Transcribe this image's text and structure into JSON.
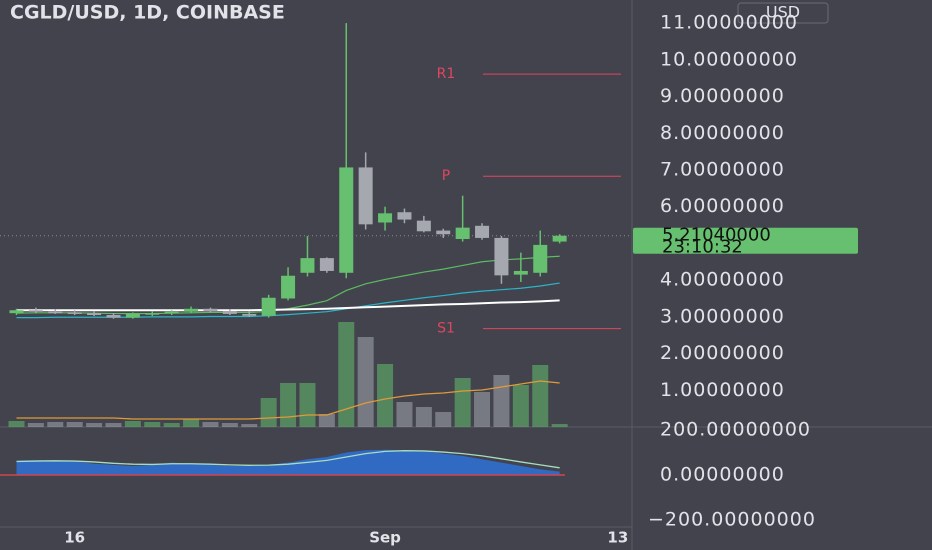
{
  "chart_data": [
    {
      "type": "candlestick",
      "title": "CGLD/USD, 1D, COINBASE",
      "currency": "USD",
      "x": [
        0,
        1,
        2,
        3,
        4,
        5,
        6,
        7,
        8,
        9,
        10,
        11,
        12,
        13,
        14,
        15,
        16,
        17,
        18,
        19,
        20,
        21,
        22,
        23,
        24,
        25,
        26,
        27,
        28
      ],
      "open": [
        3.1,
        3.18,
        3.14,
        3.12,
        3.1,
        3.05,
        2.98,
        3.08,
        3.1,
        3.14,
        3.22,
        3.15,
        3.08,
        3.03,
        3.5,
        4.2,
        4.6,
        4.2,
        7.07,
        5.57,
        5.85,
        5.62,
        5.35,
        5.12,
        5.48,
        5.15,
        4.15,
        4.2,
        5.05
      ],
      "high": [
        3.22,
        3.25,
        3.2,
        3.18,
        3.15,
        3.1,
        3.12,
        3.15,
        3.18,
        3.28,
        3.25,
        3.2,
        3.15,
        3.6,
        4.35,
        5.2,
        4.62,
        11.0,
        7.48,
        6.0,
        5.95,
        5.75,
        5.4,
        6.3,
        5.55,
        5.2,
        4.75,
        5.35,
        5.25
      ],
      "low": [
        3.05,
        3.1,
        3.08,
        3.05,
        3.02,
        2.95,
        2.95,
        3.02,
        3.05,
        3.1,
        3.12,
        3.05,
        3.0,
        2.98,
        3.45,
        4.1,
        4.2,
        4.05,
        5.38,
        5.35,
        5.55,
        5.3,
        5.15,
        5.05,
        5.1,
        3.9,
        3.95,
        4.1,
        5.0
      ],
      "close": [
        3.18,
        3.14,
        3.12,
        3.1,
        3.05,
        2.98,
        3.08,
        3.1,
        3.14,
        3.22,
        3.15,
        3.08,
        3.03,
        3.52,
        4.12,
        4.6,
        4.25,
        7.07,
        5.52,
        5.82,
        5.65,
        5.33,
        5.25,
        5.43,
        5.15,
        4.13,
        4.25,
        4.96,
        5.21
      ],
      "volume": [
        6,
        4,
        5,
        5,
        4,
        4,
        6,
        5,
        4,
        8,
        5,
        4,
        3,
        29,
        44,
        44,
        13,
        105,
        90,
        63,
        25,
        20,
        15,
        49,
        35,
        52,
        42,
        62,
        3
      ],
      "volume_ma": {
        "color": "#e09a3a",
        "values": [
          9,
          9,
          9,
          9,
          9,
          9,
          8,
          8,
          8,
          8,
          8,
          8,
          8,
          9,
          10,
          12,
          12,
          18,
          24,
          28,
          31,
          33,
          34,
          36,
          37,
          40,
          43,
          46,
          44
        ]
      },
      "volume_lim": [
        0,
        427
      ],
      "up_color": "#66c06f",
      "down_color": "#a6a8b0",
      "lines": [
        {
          "color": "#5dbb63",
          "values": [
            3.1,
            3.11,
            3.11,
            3.11,
            3.1,
            3.09,
            3.09,
            3.09,
            3.1,
            3.11,
            3.12,
            3.12,
            3.12,
            3.15,
            3.22,
            3.32,
            3.44,
            3.72,
            3.9,
            4.02,
            4.12,
            4.22,
            4.3,
            4.4,
            4.5,
            4.55,
            4.58,
            4.62,
            4.65
          ]
        },
        {
          "color": "#2bb5c8",
          "values": [
            2.98,
            2.98,
            2.99,
            2.99,
            2.99,
            2.99,
            2.99,
            3.0,
            3.0,
            3.0,
            3.01,
            3.01,
            3.01,
            3.03,
            3.06,
            3.1,
            3.14,
            3.22,
            3.3,
            3.38,
            3.45,
            3.52,
            3.58,
            3.65,
            3.7,
            3.74,
            3.78,
            3.84,
            3.92
          ]
        },
        {
          "color": "#ffffff",
          "values": [
            3.18,
            3.18,
            3.18,
            3.18,
            3.18,
            3.18,
            3.18,
            3.18,
            3.18,
            3.18,
            3.18,
            3.18,
            3.18,
            3.19,
            3.2,
            3.21,
            3.22,
            3.24,
            3.26,
            3.28,
            3.3,
            3.32,
            3.34,
            3.35,
            3.37,
            3.39,
            3.4,
            3.42,
            3.45
          ]
        }
      ],
      "pivots": [
        {
          "name": "R1",
          "value": 9.61
        },
        {
          "name": "P",
          "value": 6.83
        },
        {
          "name": "S1",
          "value": 2.68
        }
      ],
      "pivot_color": "#e0465e",
      "last_price": {
        "value": 5.2104,
        "label": "5.21040000"
      },
      "countdown": "23:10:32",
      "xlim": [
        -0.85,
        31.73
      ],
      "ylim": [
        0,
        11.63
      ],
      "yticks": [
        {
          "value": 11,
          "label": "11.00000000"
        },
        {
          "value": 10,
          "label": "10.00000000"
        },
        {
          "value": 9,
          "label": "9.00000000"
        },
        {
          "value": 8,
          "label": "8.00000000"
        },
        {
          "value": 7,
          "label": "7.00000000"
        },
        {
          "value": 6,
          "label": "6.00000000"
        },
        {
          "value": 4,
          "label": "4.00000000"
        },
        {
          "value": 3,
          "label": "3.00000000"
        },
        {
          "value": 2,
          "label": "2.00000000"
        },
        {
          "value": 1,
          "label": "1.00000000"
        }
      ]
    },
    {
      "type": "area",
      "color": "#2f6fd0",
      "signal_color": "#a8dcc0",
      "x": [
        0,
        1,
        2,
        3,
        4,
        5,
        6,
        7,
        8,
        9,
        10,
        11,
        12,
        13,
        14,
        15,
        16,
        17,
        18,
        19,
        20,
        21,
        22,
        23,
        24,
        25,
        26,
        27,
        28
      ],
      "values": [
        65,
        66,
        65,
        60,
        50,
        45,
        40,
        45,
        55,
        50,
        45,
        40,
        40,
        45,
        55,
        70,
        80,
        100,
        110,
        112,
        110,
        105,
        95,
        85,
        70,
        55,
        40,
        25,
        15
      ],
      "signal": [
        60,
        62,
        63,
        62,
        58,
        52,
        48,
        47,
        50,
        50,
        48,
        45,
        43,
        44,
        48,
        56,
        65,
        80,
        95,
        105,
        108,
        107,
        102,
        95,
        85,
        72,
        58,
        45,
        32
      ],
      "xlim": [
        -0.85,
        31.73
      ],
      "ylim": [
        -231.1,
        213.3
      ],
      "yticks": [
        {
          "value": 200,
          "label": "200.00000000"
        },
        {
          "value": 0,
          "label": "0.00000000"
        },
        {
          "value": -200,
          "label": "−200.00000000"
        }
      ],
      "xticks": [
        {
          "value": 3,
          "label": "16"
        },
        {
          "value": 19,
          "label": "Sep"
        },
        {
          "value": 31,
          "label": "13"
        }
      ]
    }
  ]
}
